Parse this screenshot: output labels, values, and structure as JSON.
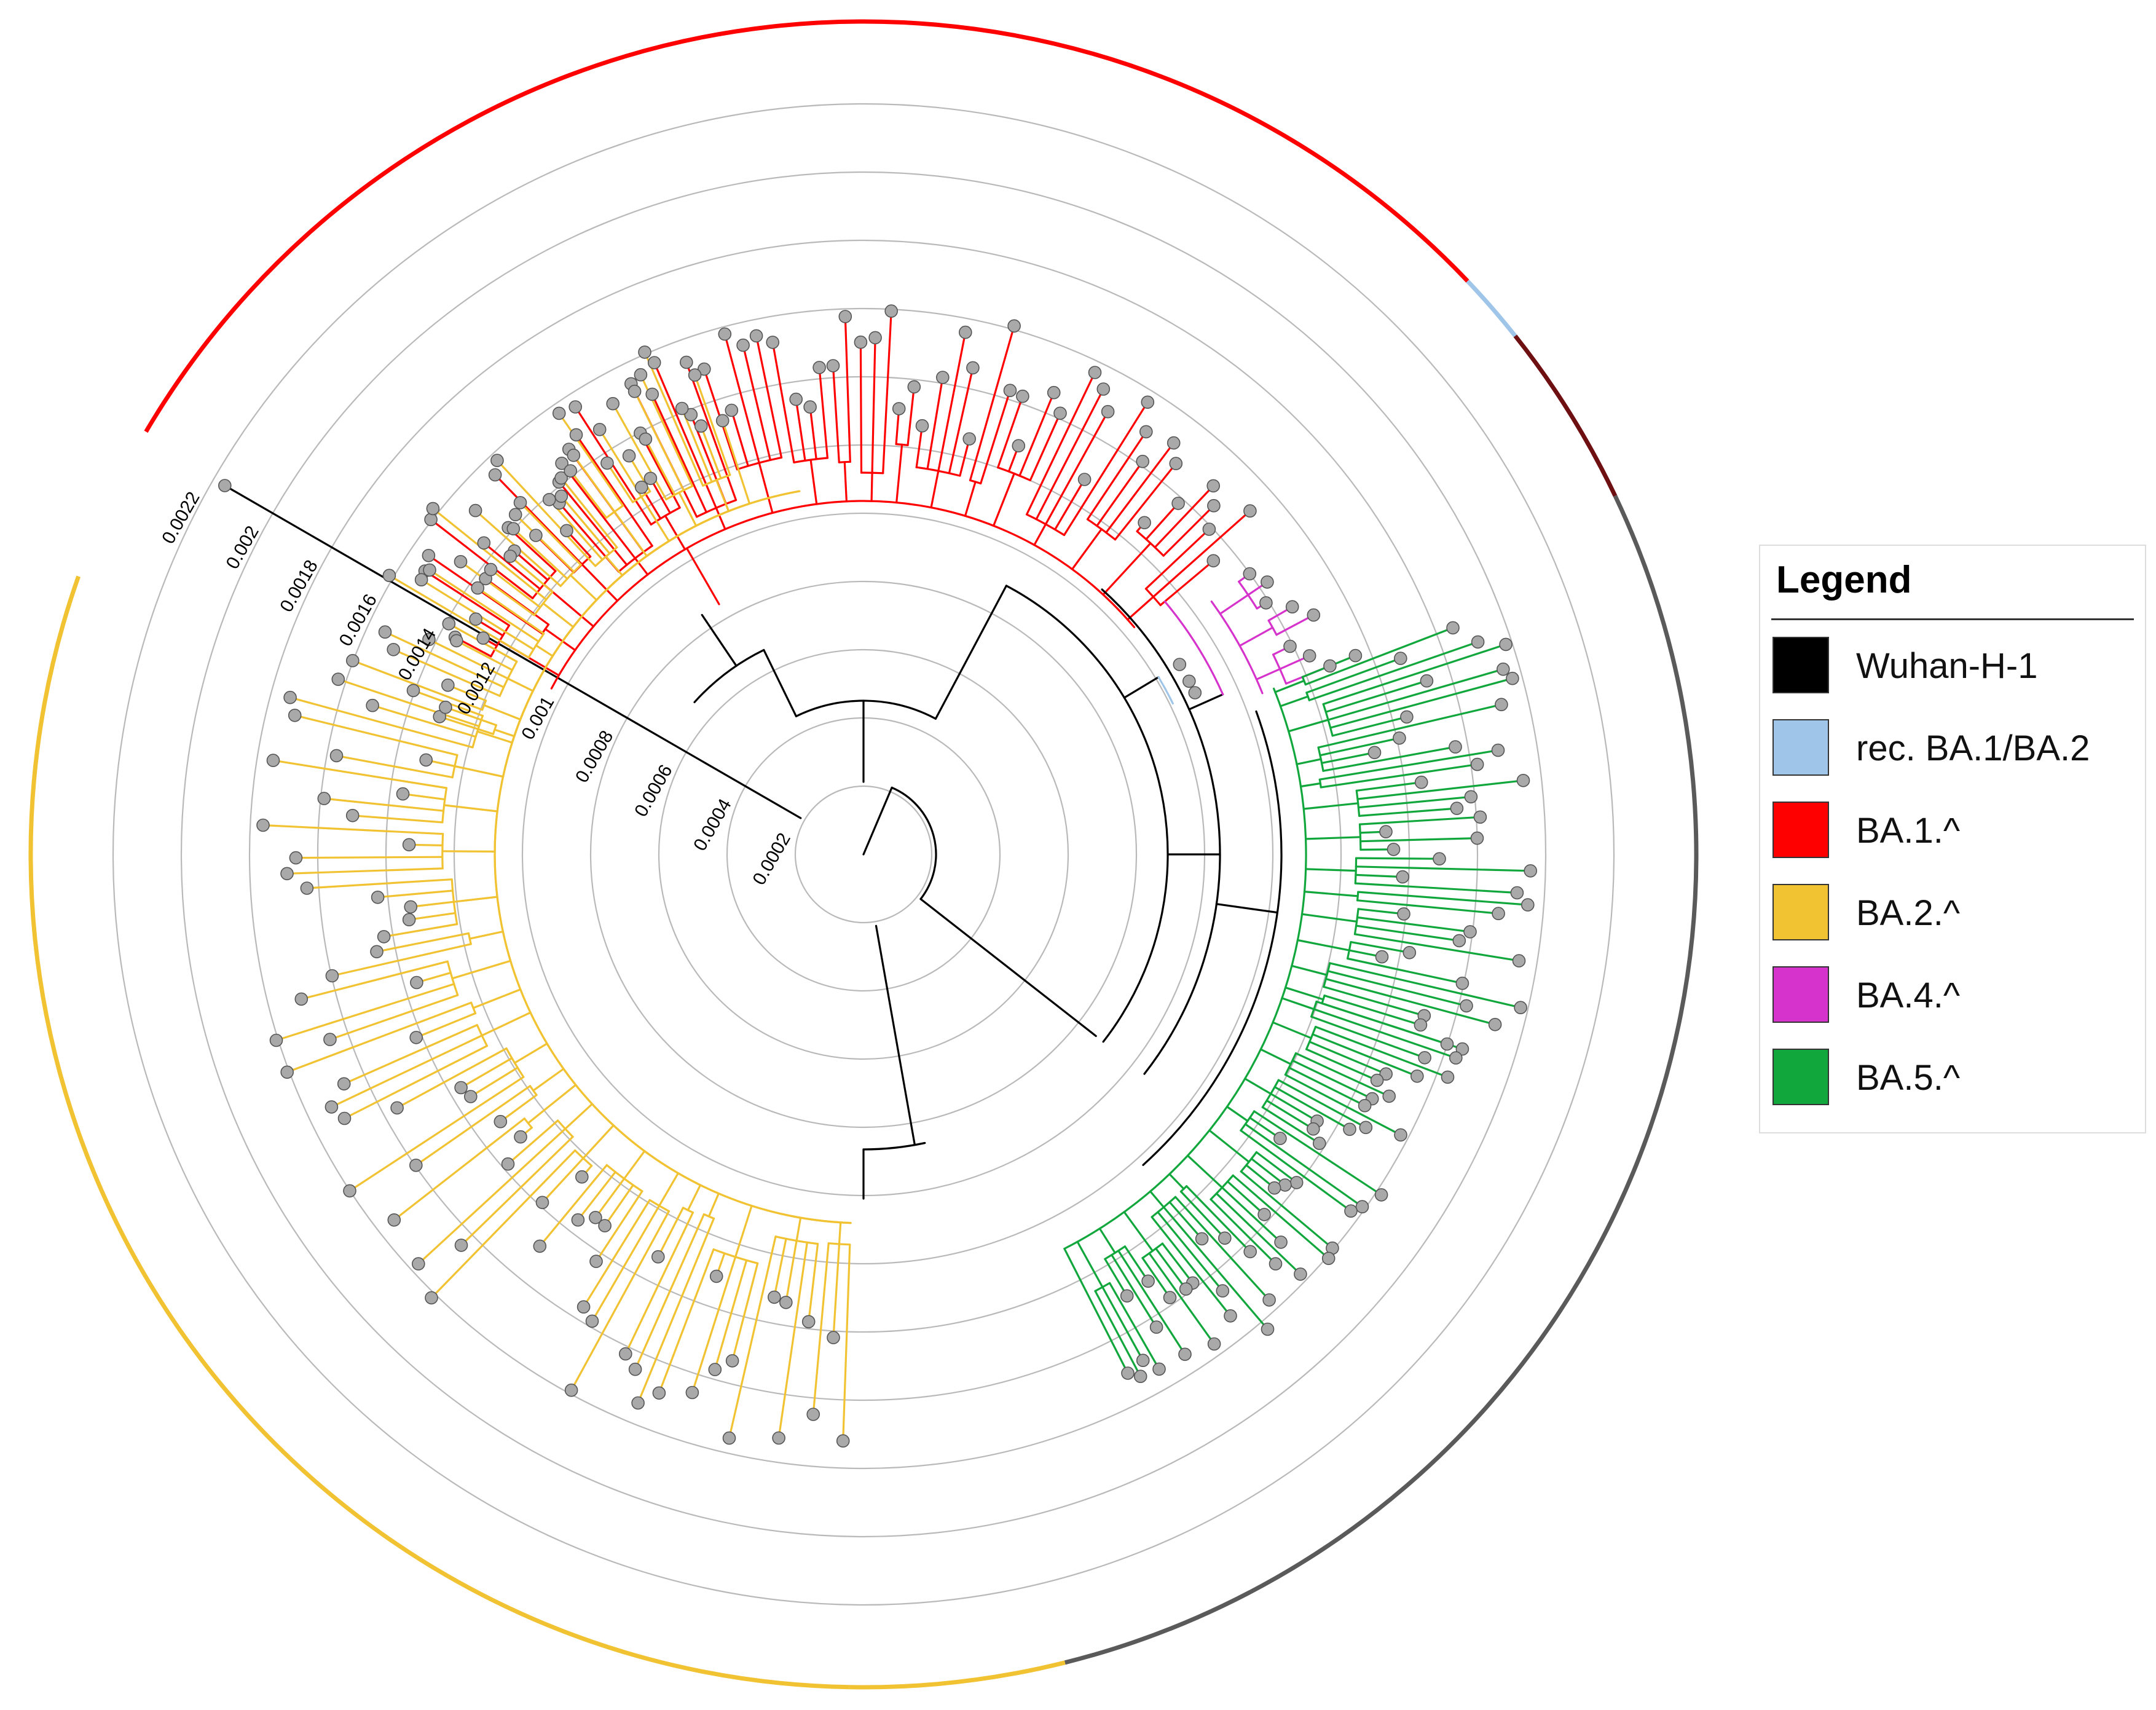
{
  "figure": {
    "type": "circular phylogenetic tree",
    "scale_ticks": [
      "0.0002",
      "0.0004",
      "0.0006",
      "0.0008",
      "0.001",
      "0.0012",
      "0.0014",
      "0.0016",
      "0.0018",
      "0.002",
      "0.0022"
    ],
    "colors": {
      "ring": "#b9b9b9",
      "backbone": "#000000",
      "tip_fill": "#a9a9a9",
      "outer_arc_dark": "#5a5a5a",
      "outer_arc_maroon": "#6e0f12"
    }
  },
  "legend": {
    "title": "Legend",
    "items": [
      {
        "key": "wuhan",
        "label": "Wuhan-H-1",
        "color": "#000000"
      },
      {
        "key": "rec",
        "label": "rec. BA.1/BA.2",
        "color": "#9fc5e8"
      },
      {
        "key": "ba1",
        "label": "BA.1.^",
        "color": "#ff0000"
      },
      {
        "key": "ba2",
        "label": "BA.2.^",
        "color": "#f1c232"
      },
      {
        "key": "ba4",
        "label": "BA.4.^",
        "color": "#d633cc"
      },
      {
        "key": "ba5",
        "label": "BA.5.^",
        "color": "#12a73c"
      }
    ]
  }
}
